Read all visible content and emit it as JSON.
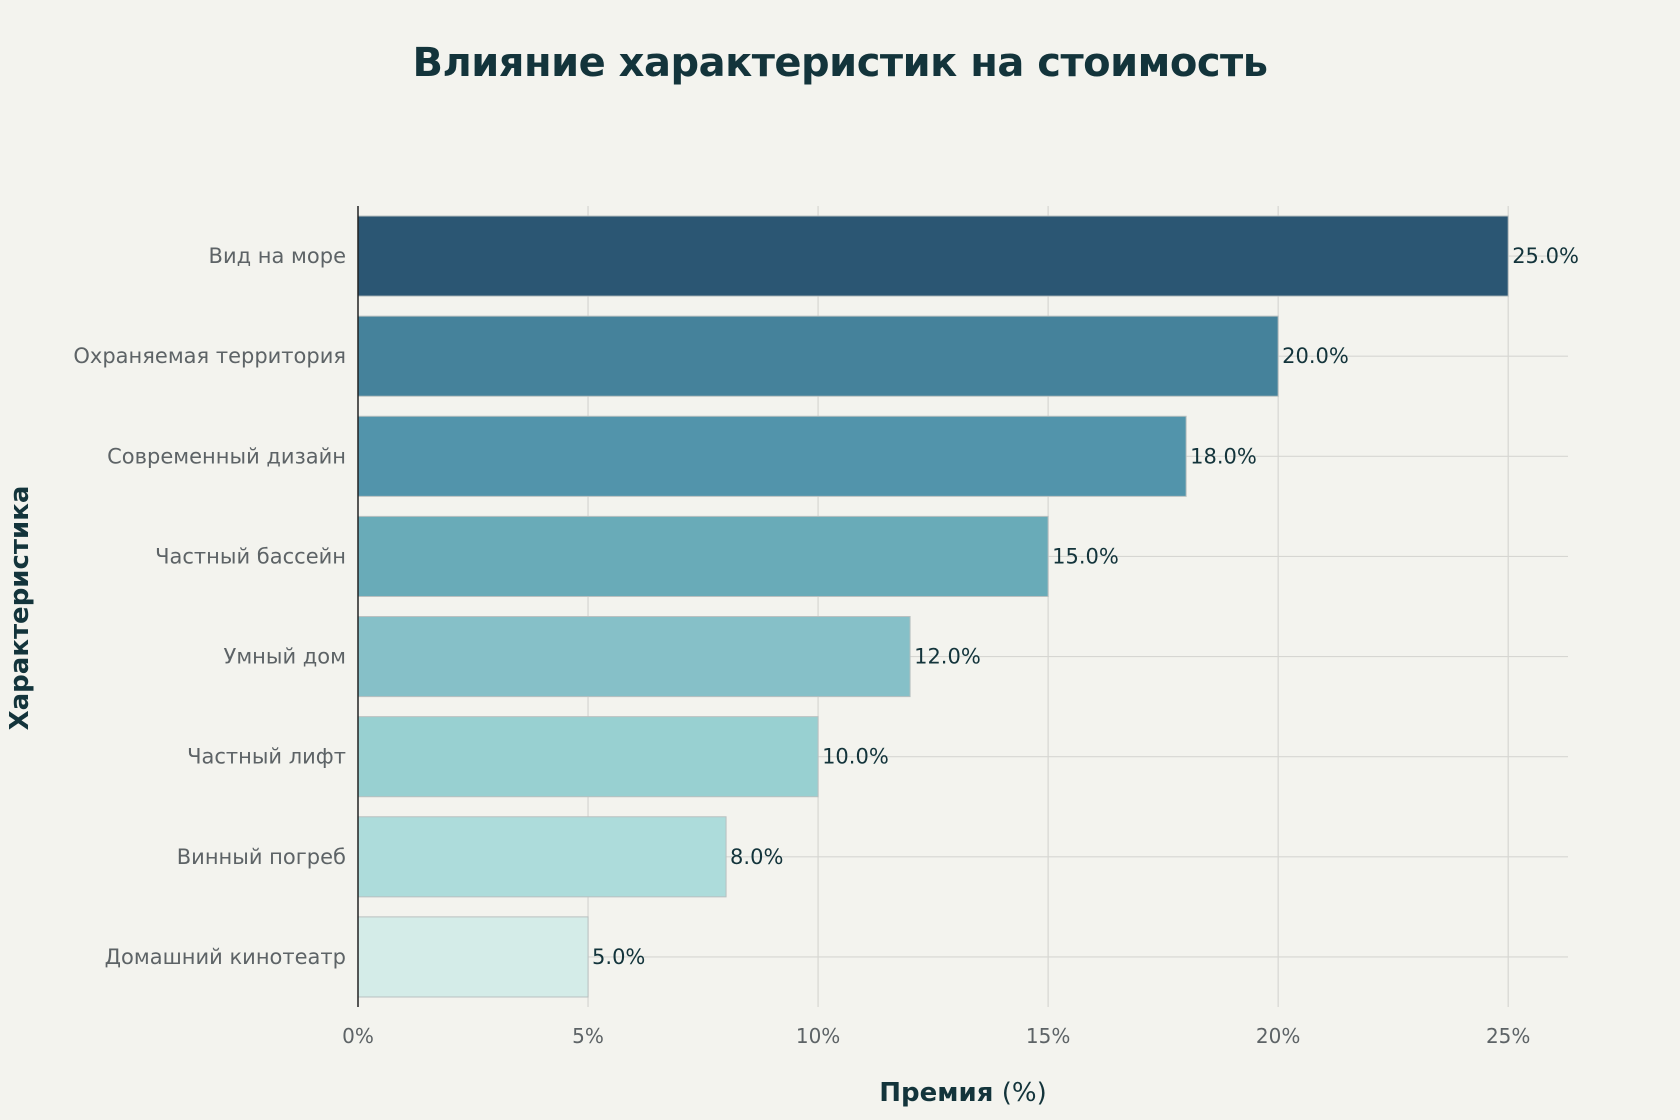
{
  "chart_data": {
    "type": "bar",
    "orientation": "horizontal",
    "title": "Влияние характеристик на стоимость",
    "xlabel_bold": "Премия",
    "xlabel_rest": " (%)",
    "ylabel": "Характеристика",
    "categories": [
      "Вид на море",
      "Охраняемая территория",
      "Современный дизайн",
      "Частный бассейн",
      "Умный дом",
      "Частный лифт",
      "Винный погреб",
      "Домашний кинотеатр"
    ],
    "values": [
      25.0,
      20.0,
      18.0,
      15.0,
      12.0,
      10.0,
      8.0,
      5.0
    ],
    "data_labels": [
      "25.0%",
      "20.0%",
      "18.0%",
      "15.0%",
      "12.0%",
      "10.0%",
      "8.0%",
      "5.0%"
    ],
    "colors": [
      "#2b5673",
      "#45829b",
      "#5294ab",
      "#69abb8",
      "#86c0c8",
      "#98d0d1",
      "#addcdb",
      "#d4ece8"
    ],
    "xlim": [
      0,
      26.3
    ],
    "xticks": [
      0,
      5,
      10,
      15,
      20,
      25
    ],
    "xtick_labels": [
      "0%",
      "5%",
      "10%",
      "15%",
      "20%",
      "25%"
    ],
    "grid": true,
    "gridline_color": "#d6d6d2",
    "axis_color": "#222222",
    "bar_outline_color": "#b9c0c0"
  }
}
